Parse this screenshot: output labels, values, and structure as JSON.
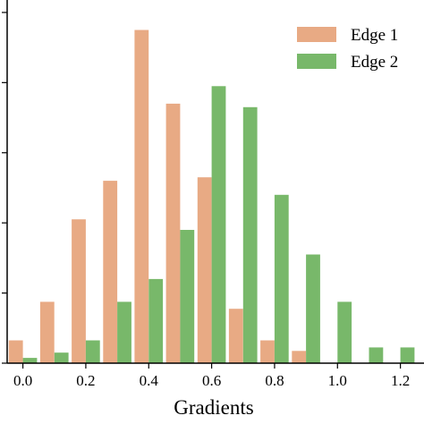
{
  "chart_data": {
    "type": "bar",
    "x": [
      0.0,
      0.1,
      0.2,
      0.3,
      0.4,
      0.5,
      0.6,
      0.7,
      0.8,
      0.9,
      1.0,
      1.1,
      1.2
    ],
    "series": [
      {
        "name": "Edge 1",
        "color": "#e8aa84",
        "values": [
          6.5,
          17.5,
          41,
          52,
          95,
          74,
          53,
          15.5,
          6.5,
          3.5,
          0,
          0,
          0
        ]
      },
      {
        "name": "Edge 2",
        "color": "#78b86a",
        "values": [
          1.5,
          3,
          6.5,
          17.5,
          24,
          38,
          79,
          73,
          48,
          31,
          17.5,
          4.5,
          4.5
        ]
      }
    ],
    "xlabel": "Gradients",
    "xticks": [
      "0.0",
      "0.2",
      "0.4",
      "0.6",
      "0.8",
      "1.0",
      "1.2"
    ],
    "xtick_values": [
      0.0,
      0.2,
      0.4,
      0.6,
      0.8,
      1.0,
      1.2
    ],
    "xlim": [
      -0.05,
      1.275
    ],
    "ylim": [
      0,
      101
    ],
    "yticks": [
      0,
      20,
      40,
      60,
      80,
      100
    ],
    "legend_position": "top-right",
    "grid": false
  }
}
